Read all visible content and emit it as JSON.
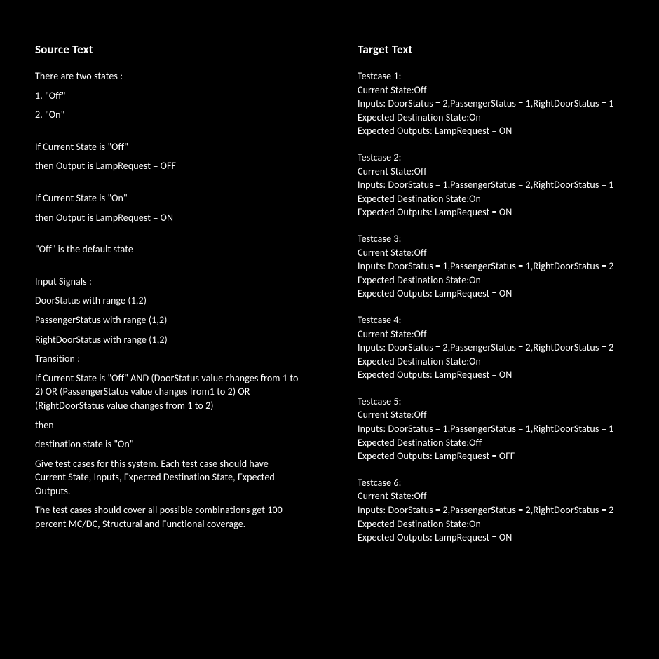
{
  "source": {
    "heading": "Source Text",
    "lines": [
      "There are two states :",
      "1.  \"Off\"",
      "2.  \"On\"",
      "",
      "If Current State is \"Off\"",
      "then Output is LampRequest  = OFF",
      "",
      "If Current State is \"On\"",
      "then Output is LampRequest  = ON",
      "",
      "\"Off\" is the default state",
      "",
      "Input Signals :",
      "DoorStatus  with range (1,2)",
      "PassengerStatus with range (1,2)",
      "RightDoorStatus with range (1,2)",
      "Transition :",
      "If Current State is \"Off\"  AND (DoorStatus value changes from 1 to 2) OR (PassengerStatus value changes from1 to 2) OR (RightDoorStatus value changes from 1 to 2)",
      "then",
      "destination state is \"On\"",
      "Give test cases for this system. Each test case should have Current State, Inputs, Expected Destination State, Expected Outputs.",
      "The test cases should cover all possible combinations get 100 percent MC/DC, Structural and Functional coverage."
    ]
  },
  "target": {
    "heading": "Target Text",
    "testcases": [
      {
        "title": "Testcase 1:",
        "currentState": "Current State:Off",
        "inputs": "Inputs: DoorStatus = 2,PassengerStatus = 1,RightDoorStatus = 1",
        "destState": "Expected Destination State:On",
        "outputs": "Expected Outputs: LampRequest  = ON"
      },
      {
        "title": "Testcase 2:",
        "currentState": "Current State:Off",
        "inputs": "Inputs: DoorStatus = 1,PassengerStatus = 2,RightDoorStatus = 1",
        "destState": "Expected Destination State:On",
        "outputs": "Expected Outputs: LampRequest  = ON"
      },
      {
        "title": "Testcase 3:",
        "currentState": "Current State:Off",
        "inputs": "Inputs: DoorStatus = 1,PassengerStatus = 1,RightDoorStatus = 2",
        "destState": "Expected Destination State:On",
        "outputs": "Expected Outputs: LampRequest  = ON"
      },
      {
        "title": "Testcase 4:",
        "currentState": "Current State:Off",
        "inputs": "Inputs: DoorStatus = 2,PassengerStatus = 2,RightDoorStatus = 2",
        "destState": "Expected Destination State:On",
        "outputs": "Expected Outputs: LampRequest  = ON"
      },
      {
        "title": "Testcase 5:",
        "currentState": "Current State:Off",
        "inputs": "Inputs: DoorStatus = 1,PassengerStatus = 1,RightDoorStatus = 1",
        "destState": "Expected Destination State:Off",
        "outputs": "Expected Outputs: LampRequest  = OFF"
      },
      {
        "title": "Testcase 6:",
        "currentState": "Current State:Off",
        "inputs": "Inputs: DoorStatus = 2,PassengerStatus = 2,RightDoorStatus = 2",
        "destState": "Expected Destination State:On",
        "outputs": "Expected Outputs: LampRequest  = ON"
      }
    ]
  },
  "colors": {
    "background": "#000000",
    "text": "#ffffff"
  },
  "typography": {
    "heading_fontsize": 17,
    "heading_fontweight": "bold",
    "body_fontsize": 14,
    "font_family": "Calibri, Arial, sans-serif"
  }
}
